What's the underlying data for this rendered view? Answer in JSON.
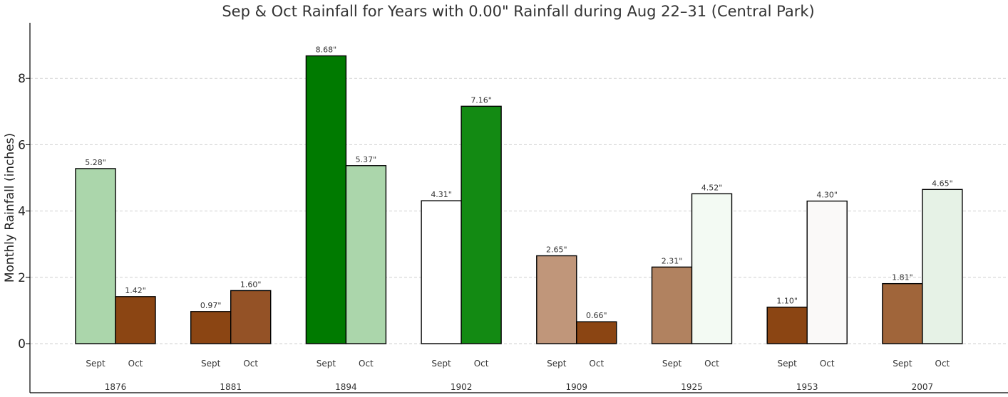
{
  "chart_data": {
    "type": "bar",
    "title": "Sep & Oct Rainfall for Years with 0.00\" Rainfall during Aug 22–31 (Central Park)",
    "xlabel": "",
    "ylabel": "Monthly Rainfall (inches)",
    "ylim": [
      -1.5,
      9.7
    ],
    "yticks": [
      "0",
      "2",
      "4",
      "6",
      "8"
    ],
    "grid": true,
    "legend": "none",
    "bar_labels": [
      "Sept",
      "Oct"
    ],
    "groups": [
      {
        "year": "1876",
        "bars": [
          {
            "label": "Sept",
            "value": 5.28,
            "text": "5.28\"",
            "color": "#abd6ab"
          },
          {
            "label": "Oct",
            "value": 1.42,
            "text": "1.42\"",
            "color": "#8b4513"
          }
        ]
      },
      {
        "year": "1881",
        "bars": [
          {
            "label": "Sept",
            "value": 0.97,
            "text": "0.97\"",
            "color": "#8b4513"
          },
          {
            "label": "Oct",
            "value": 1.6,
            "text": "1.60\"",
            "color": "#945226"
          }
        ]
      },
      {
        "year": "1894",
        "bars": [
          {
            "label": "Sept",
            "value": 8.68,
            "text": "8.68\"",
            "color": "#007a00"
          },
          {
            "label": "Oct",
            "value": 5.37,
            "text": "5.37\"",
            "color": "#abd6ab"
          }
        ]
      },
      {
        "year": "1902",
        "bars": [
          {
            "label": "Sept",
            "value": 4.31,
            "text": "4.31\"",
            "color": "#ffffff"
          },
          {
            "label": "Oct",
            "value": 7.16,
            "text": "7.16\"",
            "color": "#138a13"
          }
        ]
      },
      {
        "year": "1909",
        "bars": [
          {
            "label": "Sept",
            "value": 2.65,
            "text": "2.65\"",
            "color": "#c0967a"
          },
          {
            "label": "Oct",
            "value": 0.66,
            "text": "0.66\"",
            "color": "#8b4513"
          }
        ]
      },
      {
        "year": "1925",
        "bars": [
          {
            "label": "Sept",
            "value": 2.31,
            "text": "2.31\"",
            "color": "#b18260"
          },
          {
            "label": "Oct",
            "value": 4.52,
            "text": "4.52\"",
            "color": "#f3faf3"
          }
        ]
      },
      {
        "year": "1953",
        "bars": [
          {
            "label": "Sept",
            "value": 1.1,
            "text": "1.10\"",
            "color": "#8b4513"
          },
          {
            "label": "Oct",
            "value": 4.3,
            "text": "4.30\"",
            "color": "#faf9f8"
          }
        ]
      },
      {
        "year": "2007",
        "bars": [
          {
            "label": "Sept",
            "value": 1.81,
            "text": "1.81\"",
            "color": "#a0653a"
          },
          {
            "label": "Oct",
            "value": 4.65,
            "text": "4.65\"",
            "color": "#e6f2e6"
          }
        ]
      }
    ]
  }
}
